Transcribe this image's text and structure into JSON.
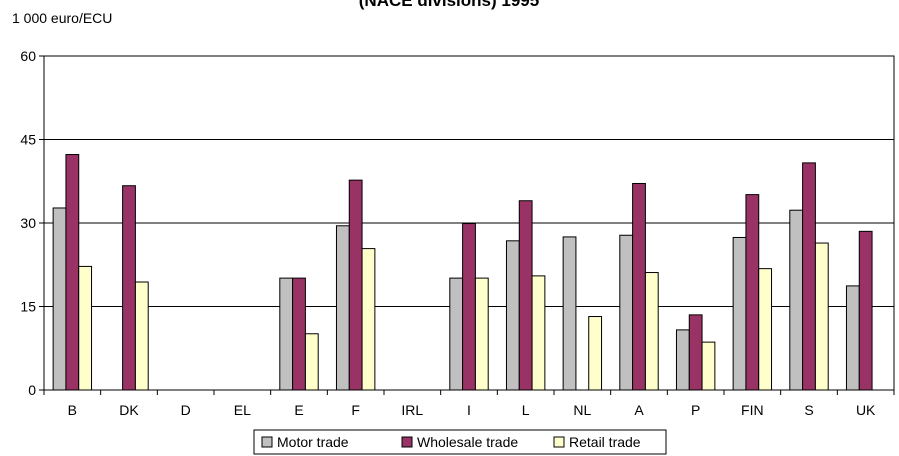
{
  "chart_data": {
    "type": "bar",
    "title": "(NACE divisions) 1995",
    "ylabel": "1 000 euro/ECU",
    "xlabel": "",
    "ylim": [
      0,
      60
    ],
    "yticks": [
      0,
      15,
      30,
      45,
      60
    ],
    "grid": true,
    "legend_position": "bottom",
    "categories": [
      "B",
      "DK",
      "D",
      "EL",
      "E",
      "F",
      "IRL",
      "I",
      "L",
      "NL",
      "A",
      "P",
      "FIN",
      "S",
      "UK"
    ],
    "series": [
      {
        "name": "Motor trade",
        "color": "#c0c0c0",
        "values": [
          32.7,
          null,
          null,
          null,
          20.1,
          29.5,
          null,
          20.1,
          26.8,
          27.5,
          27.8,
          10.8,
          27.4,
          32.3,
          18.7
        ]
      },
      {
        "name": "Wholesale trade",
        "color": "#993366",
        "values": [
          42.3,
          36.7,
          null,
          null,
          20.1,
          37.7,
          null,
          29.9,
          34.0,
          null,
          37.1,
          13.5,
          35.1,
          40.8,
          28.5
        ]
      },
      {
        "name": "Retail trade",
        "color": "#ffffcc",
        "values": [
          22.2,
          19.4,
          null,
          null,
          10.1,
          25.4,
          null,
          20.1,
          20.5,
          13.2,
          21.1,
          8.6,
          21.8,
          26.4,
          null
        ]
      }
    ]
  }
}
